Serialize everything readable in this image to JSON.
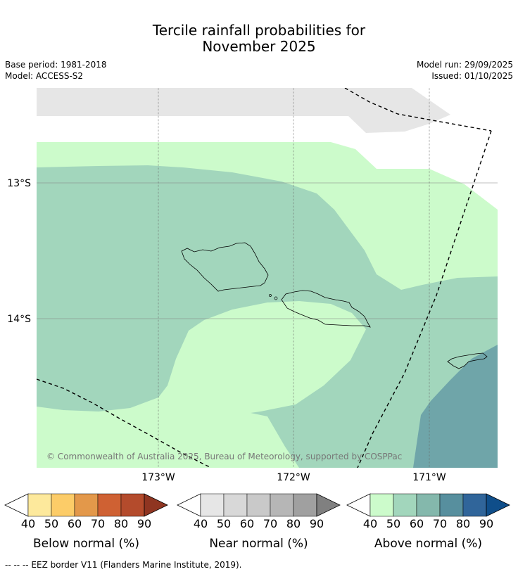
{
  "title_line1": "Tercile rainfall probabilities for",
  "title_line2": "November 2025",
  "base_period": "Base period: 1981-2018",
  "model": "Model: ACCESS-S2",
  "model_run": "Model run: 29/09/2025",
  "issued": "Issued: 01/10/2025",
  "lat_labels": [
    "13°S",
    "14°S"
  ],
  "lon_labels": [
    "173°W",
    "172°W",
    "171°W"
  ],
  "copyright": "© Commonwealth of Australia 2025, Bureau of Meteorology, supported by COSPPac",
  "colorbars": [
    {
      "label": "Below normal (%)",
      "ticks": [
        "40",
        "50",
        "60",
        "70",
        "80",
        "90"
      ],
      "colors": [
        "#fde99c",
        "#fccc68",
        "#e3984a",
        "#cf6133",
        "#b44b2c",
        "#8f3521"
      ]
    },
    {
      "label": "Near normal (%)",
      "ticks": [
        "40",
        "50",
        "60",
        "70",
        "80",
        "90"
      ],
      "colors": [
        "#e6e6e6",
        "#d8d8d8",
        "#c9c9c9",
        "#b6b6b6",
        "#a0a0a0",
        "#808080"
      ]
    },
    {
      "label": "Above normal (%)",
      "ticks": [
        "40",
        "50",
        "60",
        "70",
        "80",
        "90"
      ],
      "colors": [
        "#ccfbcb",
        "#a2d6bc",
        "#84b8ac",
        "#578f9e",
        "#30659a",
        "#0f4e8a"
      ]
    }
  ],
  "footnote": "--  --  -- EEZ border V11 (Flanders Marine Institute, 2019)."
}
